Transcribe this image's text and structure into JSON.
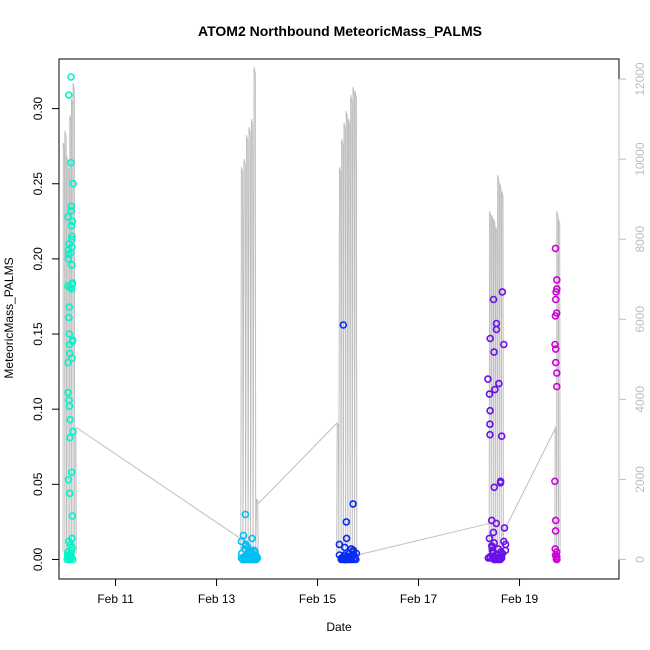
{
  "chart_data": {
    "type": "scatter",
    "title": "ATOM2 Northbound MeteoricMass_PALMS",
    "xlabel": "Date",
    "ylabel": "MeteoricMass_PALMS",
    "x_ticks": [
      "Feb 11",
      "Feb 13",
      "Feb 15",
      "Feb 17",
      "Feb 19"
    ],
    "x_tick_values": [
      11,
      13,
      15,
      17,
      19
    ],
    "xlim": [
      9.88,
      20.97
    ],
    "y_ticks": [
      "0.00",
      "0.05",
      "0.10",
      "0.15",
      "0.20",
      "0.25",
      "0.30"
    ],
    "y_tick_values": [
      0,
      0.05,
      0.1,
      0.15,
      0.2,
      0.25,
      0.3
    ],
    "ylim": [
      -0.013,
      0.333
    ],
    "y2_ticks": [
      "0",
      "2000",
      "4000",
      "6000",
      "8000",
      "10000",
      "12000"
    ],
    "y2_tick_values": [
      0,
      2000,
      4000,
      6000,
      8000,
      10000,
      12000
    ],
    "y2lim": [
      -488,
      12502
    ],
    "y2_color": "#bebebe",
    "grid": false,
    "legend": "none",
    "series": [
      {
        "color": "#00f5c8",
        "x_center": 10.1,
        "x_spread": 0.12,
        "values": [
          0.321,
          0.309,
          0.264,
          0.25,
          0.235,
          0.232,
          0.228,
          0.225,
          0.222,
          0.215,
          0.213,
          0.21,
          0.208,
          0.206,
          0.204,
          0.203,
          0.2,
          0.196,
          0.184,
          0.183,
          0.182,
          0.181,
          0.18,
          0.168,
          0.161,
          0.15,
          0.146,
          0.145,
          0.143,
          0.137,
          0.134,
          0.131,
          0.111,
          0.106,
          0.102,
          0.093,
          0.085,
          0.081,
          0.058,
          0.053,
          0.044,
          0.029,
          0.014,
          0.012,
          0.01,
          0.008,
          0.006,
          0.005,
          0.004,
          0.003,
          0.002,
          0.002,
          0.001,
          0.001,
          0.001,
          0.0,
          0.0,
          0.0,
          0.0,
          0.0
        ]
      },
      {
        "color": "#00bff5",
        "x_center": 13.65,
        "x_spread": 0.32,
        "values": [
          0.03,
          0.016,
          0.014,
          0.012,
          0.01,
          0.009,
          0.008,
          0.007,
          0.006,
          0.006,
          0.005,
          0.005,
          0.004,
          0.004,
          0.004,
          0.003,
          0.003,
          0.003,
          0.003,
          0.002,
          0.002,
          0.002,
          0.002,
          0.002,
          0.002,
          0.001,
          0.001,
          0.001,
          0.001,
          0.001,
          0.001,
          0.001,
          0.001,
          0.001,
          0.001,
          0.0,
          0.0,
          0.0,
          0.0,
          0.0,
          0.0,
          0.0,
          0.0,
          0.0,
          0.0,
          0.0,
          0.0,
          0.0,
          0.0,
          0.0
        ]
      },
      {
        "color": "#0a2bf0",
        "x_center": 15.6,
        "x_spread": 0.34,
        "values": [
          0.156,
          0.037,
          0.025,
          0.014,
          0.01,
          0.008,
          0.007,
          0.006,
          0.005,
          0.004,
          0.004,
          0.003,
          0.003,
          0.003,
          0.002,
          0.002,
          0.002,
          0.002,
          0.002,
          0.001,
          0.001,
          0.001,
          0.001,
          0.001,
          0.001,
          0.001,
          0.001,
          0.0,
          0.0,
          0.0,
          0.0,
          0.0,
          0.0,
          0.0,
          0.0,
          0.0,
          0.0,
          0.0,
          0.0,
          0.0
        ]
      },
      {
        "color": "#6a10e8",
        "x_center": 18.55,
        "x_spread": 0.36,
        "values": [
          0.178,
          0.173,
          0.157,
          0.153,
          0.147,
          0.143,
          0.138,
          0.12,
          0.117,
          0.113,
          0.11,
          0.099,
          0.09,
          0.083,
          0.082,
          0.052,
          0.051,
          0.048,
          0.026,
          0.024,
          0.021,
          0.018,
          0.014,
          0.012,
          0.011,
          0.01,
          0.009,
          0.008,
          0.007,
          0.006,
          0.006,
          0.005,
          0.005,
          0.004,
          0.004,
          0.003,
          0.003,
          0.003,
          0.002,
          0.002,
          0.002,
          0.002,
          0.001,
          0.001,
          0.001,
          0.001,
          0.001,
          0.0,
          0.0,
          0.0,
          0.0,
          0.0,
          0.0,
          0.0,
          0.0
        ]
      },
      {
        "color": "#d000d8",
        "x_center": 19.72,
        "x_spread": 0.04,
        "values": [
          0.207,
          0.186,
          0.18,
          0.178,
          0.173,
          0.164,
          0.162,
          0.143,
          0.14,
          0.131,
          0.124,
          0.115,
          0.052,
          0.026,
          0.019,
          0.007,
          0.005,
          0.003,
          0.002,
          0.001,
          0.0,
          0.0
        ]
      }
    ],
    "altitude": {
      "color": "#bebebe",
      "segments": [
        {
          "x_start": 9.96,
          "x_end": 10.22,
          "peak_values": [
            10400,
            10700,
            10100,
            9800,
            11100,
            11500,
            11900,
            3300
          ]
        },
        {
          "x_start": 13.48,
          "x_end": 13.83,
          "peak_values": [
            9800,
            10000,
            10600,
            10800,
            11000,
            12300,
            1500
          ]
        },
        {
          "x_start": 15.38,
          "x_end": 15.78,
          "peak_values": [
            3400,
            9800,
            10500,
            10900,
            11200,
            11000,
            11600,
            11800,
            11700
          ]
        },
        {
          "x_start": 18.4,
          "x_end": 18.68,
          "peak_values": [
            8700,
            8600,
            8500,
            8300,
            9600,
            9400,
            9200
          ]
        },
        {
          "x_start": 19.7,
          "x_end": 19.8,
          "peak_values": [
            3300,
            8700,
            8500
          ]
        }
      ],
      "transits": [
        {
          "from": [
            10.22,
            3300
          ],
          "to": [
            13.5,
            500
          ]
        },
        {
          "from": [
            13.83,
            1400
          ],
          "to": [
            15.38,
            3400
          ]
        },
        {
          "from": [
            15.75,
            100
          ],
          "to": [
            18.4,
            900
          ]
        },
        {
          "from": [
            18.65,
            600
          ],
          "to": [
            19.72,
            3300
          ]
        }
      ]
    }
  }
}
